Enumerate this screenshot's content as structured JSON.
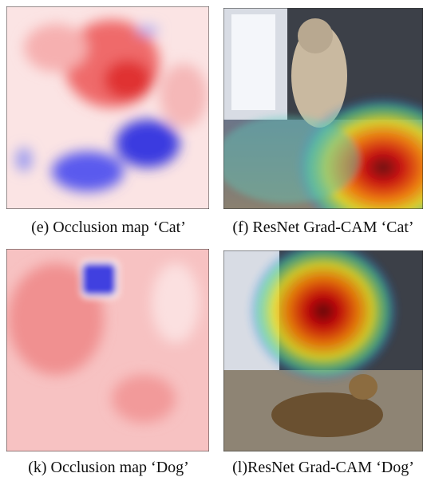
{
  "panels": [
    {
      "caption": "(e) Occlusion map ‘Cat’"
    },
    {
      "caption": "(f) ResNet Grad-CAM ‘Cat’"
    },
    {
      "caption": "(k) Occlusion map ‘Dog’"
    },
    {
      "caption": "(l)ResNet Grad-CAM ‘Dog’"
    }
  ]
}
